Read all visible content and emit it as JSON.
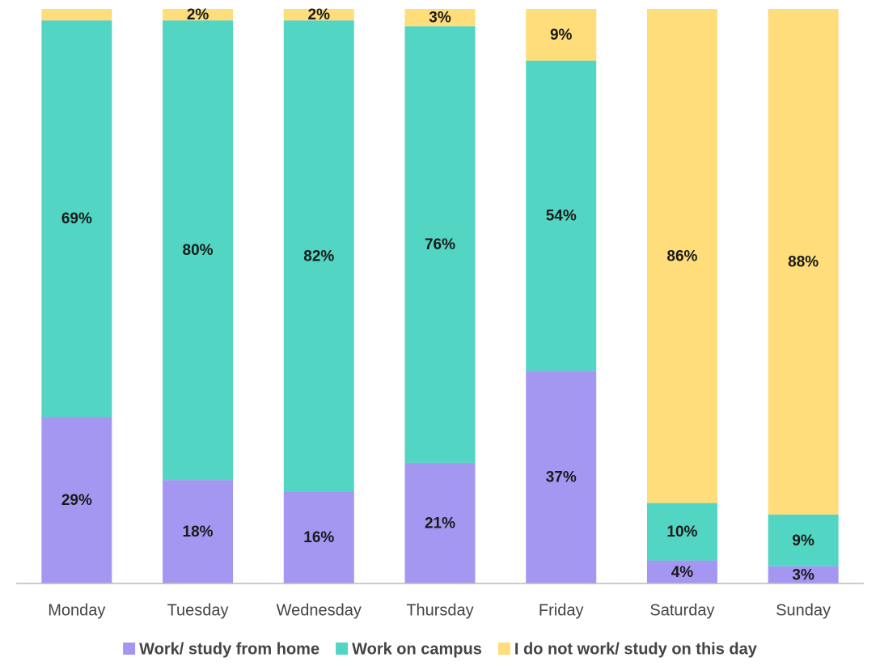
{
  "chart_data": {
    "type": "stacked-bar",
    "categories": [
      "Monday",
      "Tuesday",
      "Wednesday",
      "Thursday",
      "Friday",
      "Saturday",
      "Sunday"
    ],
    "series": [
      {
        "name": "Work/ study from home",
        "color": "#a497f2",
        "values": [
          29,
          18,
          16,
          21,
          37,
          4,
          3
        ],
        "value_labels": [
          "29%",
          "18%",
          "16%",
          "21%",
          "37%",
          "4%",
          "3%"
        ]
      },
      {
        "name": "Work on campus",
        "color": "#52d6c3",
        "values": [
          69,
          80,
          82,
          76,
          54,
          10,
          9
        ],
        "value_labels": [
          "69%",
          "80%",
          "82%",
          "76%",
          "54%",
          "10%",
          "9%"
        ]
      },
      {
        "name": "I do not work/ study on this day",
        "color": "#fedd7a",
        "values": [
          2,
          2,
          2,
          3,
          9,
          86,
          88
        ],
        "value_labels": [
          null,
          "2%",
          "2%",
          "3%",
          "9%",
          "86%",
          "88%"
        ]
      }
    ],
    "ylim": [
      0,
      100
    ],
    "legend": "bottom"
  }
}
